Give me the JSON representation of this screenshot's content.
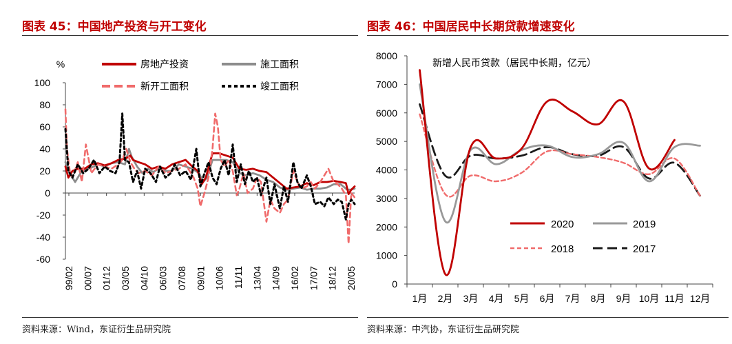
{
  "chart_data": [
    {
      "id": "fig45",
      "type": "line",
      "title": "图表 45：中国地产投资与开工变化",
      "ylabel": "%",
      "ylim": [
        -60,
        100
      ],
      "yticks": [
        -60,
        -40,
        -20,
        0,
        20,
        40,
        60,
        80,
        100
      ],
      "xticks": [
        "99/02",
        "00/07",
        "01/12",
        "03/05",
        "04/10",
        "06/03",
        "07/08",
        "09/01",
        "10/06",
        "11/11",
        "13/04",
        "14/09",
        "16/02",
        "17/07",
        "18/12",
        "20/05"
      ],
      "xrange": [
        1999.08,
        2020.55
      ],
      "legend_position": "top",
      "source": "资料来源：Wind，东证衍生品研究院",
      "series": [
        {
          "name": "房地产投资",
          "color": "#c00000",
          "style": "solid",
          "x": [
            1999.08,
            1999.3,
            1999.6,
            2000.0,
            2000.5,
            2001.0,
            2001.5,
            2002.0,
            2002.5,
            2003.0,
            2003.5,
            2003.9,
            2004.1,
            2004.5,
            2005.0,
            2005.5,
            2006.0,
            2006.5,
            2007.0,
            2007.5,
            2008.0,
            2008.5,
            2008.9,
            2009.2,
            2009.5,
            2010.0,
            2010.5,
            2011.0,
            2011.5,
            2012.0,
            2012.5,
            2013.0,
            2013.5,
            2014.0,
            2014.5,
            2015.0,
            2015.5,
            2016.0,
            2016.5,
            2017.0,
            2017.5,
            2018.0,
            2018.5,
            2019.0,
            2019.5,
            2019.9,
            2020.1,
            2020.3,
            2020.55
          ],
          "y": [
            24,
            14,
            20,
            22,
            22,
            26,
            27,
            25,
            27,
            30,
            31,
            34,
            30,
            28,
            26,
            22,
            24,
            22,
            26,
            28,
            30,
            24,
            20,
            8,
            14,
            36,
            36,
            34,
            32,
            22,
            21,
            22,
            20,
            19,
            14,
            9,
            4,
            5,
            6,
            9,
            7,
            10,
            10,
            11,
            10,
            9,
            -1,
            3,
            6
          ]
        },
        {
          "name": "施工面积",
          "color": "#8c8c8c",
          "style": "solid",
          "x": [
            1999.08,
            1999.4,
            1999.8,
            2000.2,
            2000.6,
            2001.0,
            2001.5,
            2002.0,
            2002.5,
            2003.0,
            2003.5,
            2003.8,
            2004.0,
            2004.4,
            2004.8,
            2005.2,
            2005.6,
            2006.0,
            2006.5,
            2007.0,
            2007.5,
            2008.0,
            2008.5,
            2009.0,
            2009.3,
            2009.6,
            2010.0,
            2010.5,
            2011.0,
            2011.5,
            2012.0,
            2012.5,
            2013.0,
            2013.5,
            2014.0,
            2014.5,
            2015.0,
            2015.5,
            2016.0,
            2016.5,
            2017.0,
            2017.5,
            2018.0,
            2018.5,
            2019.0,
            2019.5,
            2020.0,
            2020.3,
            2020.55
          ],
          "y": [
            28,
            18,
            10,
            18,
            22,
            23,
            26,
            24,
            27,
            28,
            26,
            40,
            33,
            24,
            18,
            22,
            19,
            22,
            20,
            20,
            26,
            24,
            22,
            18,
            10,
            14,
            30,
            30,
            30,
            28,
            18,
            16,
            18,
            16,
            12,
            10,
            5,
            3,
            4,
            5,
            3,
            4,
            4,
            5,
            8,
            8,
            3,
            3,
            4
          ]
        },
        {
          "name": "新开工面积",
          "color": "#f06b6b",
          "style": "dashed",
          "x": [
            1999.08,
            1999.2,
            1999.4,
            1999.6,
            2000.0,
            2000.3,
            2000.6,
            2001.0,
            2001.5,
            2002.0,
            2002.5,
            2003.0,
            2003.3,
            2003.6,
            2003.9,
            2004.2,
            2004.5,
            2005.0,
            2005.5,
            2006.0,
            2006.5,
            2007.0,
            2007.5,
            2008.0,
            2008.3,
            2008.6,
            2008.9,
            2009.1,
            2009.4,
            2009.7,
            2010.0,
            2010.2,
            2010.4,
            2010.6,
            2010.9,
            2011.2,
            2011.5,
            2011.8,
            2012.0,
            2012.3,
            2012.6,
            2013.0,
            2013.3,
            2013.6,
            2014.0,
            2014.3,
            2014.6,
            2015.0,
            2015.3,
            2015.6,
            2016.0,
            2016.3,
            2016.6,
            2017.0,
            2017.3,
            2017.6,
            2018.0,
            2018.3,
            2018.6,
            2019.0,
            2019.3,
            2019.6,
            2019.9,
            2020.1,
            2020.3,
            2020.55
          ],
          "y": [
            76,
            40,
            20,
            14,
            28,
            10,
            44,
            18,
            26,
            24,
            22,
            26,
            30,
            40,
            28,
            22,
            18,
            20,
            16,
            24,
            18,
            20,
            22,
            26,
            20,
            14,
            4,
            -12,
            0,
            14,
            40,
            72,
            60,
            30,
            24,
            30,
            20,
            -2,
            4,
            18,
            0,
            4,
            14,
            10,
            -26,
            -6,
            -14,
            -18,
            -10,
            -6,
            20,
            10,
            4,
            6,
            10,
            4,
            10,
            16,
            22,
            10,
            8,
            4,
            -2,
            -46,
            0,
            -4
          ]
        },
        {
          "name": "竣工面积",
          "color": "#000000",
          "style": "dotted",
          "x": [
            1999.08,
            1999.3,
            1999.6,
            2000.0,
            2000.4,
            2000.8,
            2001.2,
            2001.6,
            2002.0,
            2002.4,
            2002.8,
            2003.1,
            2003.3,
            2003.5,
            2003.8,
            2004.1,
            2004.4,
            2004.7,
            2005.0,
            2005.4,
            2005.8,
            2006.1,
            2006.5,
            2006.9,
            2007.2,
            2007.6,
            2008.0,
            2008.4,
            2008.8,
            2009.1,
            2009.4,
            2009.7,
            2010.0,
            2010.3,
            2010.6,
            2010.9,
            2011.2,
            2011.5,
            2011.8,
            2012.1,
            2012.4,
            2012.7,
            2013.0,
            2013.3,
            2013.6,
            2014.0,
            2014.3,
            2014.6,
            2015.0,
            2015.3,
            2015.6,
            2016.0,
            2016.3,
            2016.6,
            2017.0,
            2017.3,
            2017.6,
            2018.0,
            2018.3,
            2018.6,
            2019.0,
            2019.3,
            2019.6,
            2019.9,
            2020.1,
            2020.3,
            2020.55
          ],
          "y": [
            58,
            20,
            14,
            26,
            18,
            22,
            30,
            18,
            24,
            20,
            18,
            28,
            72,
            30,
            28,
            10,
            20,
            4,
            22,
            18,
            10,
            24,
            14,
            18,
            26,
            16,
            20,
            12,
            40,
            6,
            18,
            28,
            14,
            8,
            22,
            30,
            16,
            44,
            10,
            26,
            8,
            20,
            10,
            14,
            -2,
            14,
            -10,
            8,
            -14,
            6,
            -8,
            28,
            10,
            4,
            16,
            6,
            -10,
            -8,
            -12,
            -4,
            -10,
            -6,
            -8,
            -24,
            -10,
            -6,
            -10
          ]
        }
      ]
    },
    {
      "id": "fig46",
      "type": "line",
      "title": "图表 46：中国居民中长期贷款增速变化",
      "annotation": "新增人民币贷款（居民中长期，亿元）",
      "categories": [
        "1月",
        "2月",
        "3月",
        "4月",
        "5月",
        "6月",
        "7月",
        "8月",
        "9月",
        "10月",
        "11月",
        "12月"
      ],
      "ylim": [
        0,
        8000
      ],
      "yticks": [
        0,
        1000,
        2000,
        3000,
        4000,
        5000,
        6000,
        7000,
        8000
      ],
      "legend_position": "bottom-right",
      "source": "资料来源：中汽协，东证衍生品研究院",
      "series": [
        {
          "name": "2020",
          "color": "#c00000",
          "style": "solid",
          "values": [
            7500,
            350,
            4800,
            4400,
            4750,
            6400,
            6050,
            5600,
            6400,
            4050,
            5050,
            null
          ]
        },
        {
          "name": "2019",
          "color": "#999999",
          "style": "solid",
          "values": [
            7000,
            2200,
            4700,
            4200,
            4700,
            4850,
            4450,
            4550,
            4950,
            3600,
            4800,
            4850
          ]
        },
        {
          "name": "2018",
          "color": "#f06b6b",
          "style": "dashed",
          "values": [
            5950,
            3150,
            3800,
            3600,
            3900,
            4650,
            4550,
            4450,
            4250,
            3850,
            4400,
            3100
          ]
        },
        {
          "name": "2017",
          "color": "#1a1a1a",
          "style": "dashed",
          "values": [
            6300,
            3800,
            4500,
            4400,
            4500,
            4800,
            4550,
            4500,
            4800,
            3700,
            4250,
            3100
          ]
        }
      ]
    }
  ]
}
